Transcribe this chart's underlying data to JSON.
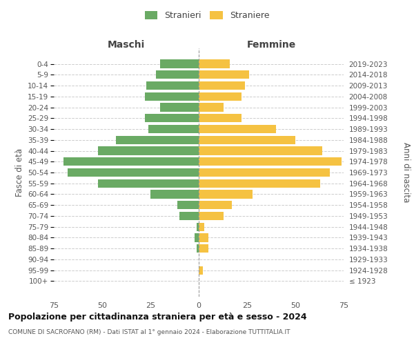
{
  "age_groups": [
    "100+",
    "95-99",
    "90-94",
    "85-89",
    "80-84",
    "75-79",
    "70-74",
    "65-69",
    "60-64",
    "55-59",
    "50-54",
    "45-49",
    "40-44",
    "35-39",
    "30-34",
    "25-29",
    "20-24",
    "15-19",
    "10-14",
    "5-9",
    "0-4"
  ],
  "birth_years": [
    "≤ 1923",
    "1924-1928",
    "1929-1933",
    "1934-1938",
    "1939-1943",
    "1944-1948",
    "1949-1953",
    "1954-1958",
    "1959-1963",
    "1964-1968",
    "1969-1973",
    "1974-1978",
    "1979-1983",
    "1984-1988",
    "1989-1993",
    "1994-1998",
    "1999-2003",
    "2004-2008",
    "2009-2013",
    "2014-2018",
    "2019-2023"
  ],
  "males": [
    0,
    0,
    0,
    1,
    2,
    1,
    10,
    11,
    25,
    52,
    68,
    70,
    52,
    43,
    26,
    28,
    20,
    28,
    27,
    22,
    20
  ],
  "females": [
    0,
    2,
    0,
    5,
    5,
    3,
    13,
    17,
    28,
    63,
    68,
    74,
    64,
    50,
    40,
    22,
    13,
    22,
    24,
    26,
    16
  ],
  "male_color": "#6aaa64",
  "female_color": "#f5c242",
  "grid_color": "#cccccc",
  "title": "Popolazione per cittadinanza straniera per età e sesso - 2024",
  "subtitle": "COMUNE DI SACROFANO (RM) - Dati ISTAT al 1° gennaio 2024 - Elaborazione TUTTITALIA.IT",
  "xlabel_left": "Maschi",
  "xlabel_right": "Femmine",
  "ylabel_left": "Fasce di età",
  "ylabel_right": "Anni di nascita",
  "legend_male": "Stranieri",
  "legend_female": "Straniere",
  "xlim": 75
}
